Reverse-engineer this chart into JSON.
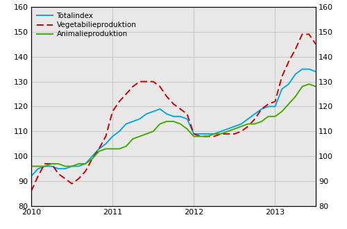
{
  "ylim": [
    80,
    160
  ],
  "xlim_start": 0,
  "xlim_end": 42,
  "xtick_positions": [
    0,
    12,
    24,
    36
  ],
  "xtick_labels": [
    "2010",
    "2011",
    "2012",
    "2013"
  ],
  "ytick_values": [
    80,
    90,
    100,
    110,
    120,
    130,
    140,
    150,
    160
  ],
  "grid_color": "#c8c8c8",
  "bg_color": "#e8e8e8",
  "fig_bg_color": "#ffffff",
  "totalindex_color": "#00aadd",
  "vegetabilieproduktion_color": "#cc0000",
  "animalieproduktion_color": "#44aa00",
  "legend_labels": [
    "Totalindex",
    "Vegetabilieproduktion",
    "Animalieproduktion"
  ],
  "totalindex": [
    92,
    95,
    96,
    96,
    95,
    95,
    96,
    96,
    97,
    100,
    103,
    105,
    108,
    110,
    113,
    114,
    115,
    117,
    118,
    119,
    117,
    116,
    116,
    115,
    109,
    109,
    109,
    109,
    110,
    111,
    112,
    113,
    115,
    117,
    119,
    120,
    120,
    127,
    129,
    133,
    135,
    135,
    134
  ],
  "vegetabilieproduktion": [
    86,
    92,
    97,
    97,
    93,
    91,
    89,
    91,
    94,
    99,
    103,
    108,
    118,
    122,
    125,
    128,
    130,
    130,
    130,
    128,
    124,
    121,
    119,
    117,
    109,
    108,
    108,
    108,
    109,
    109,
    109,
    110,
    112,
    115,
    119,
    121,
    122,
    132,
    138,
    143,
    149,
    149,
    145
  ],
  "animalieproduktion": [
    96,
    96,
    96,
    97,
    97,
    96,
    96,
    97,
    97,
    99,
    102,
    103,
    103,
    103,
    104,
    107,
    108,
    109,
    110,
    113,
    114,
    114,
    113,
    111,
    108,
    108,
    108,
    109,
    109,
    110,
    111,
    112,
    113,
    113,
    114,
    116,
    116,
    118,
    121,
    124,
    128,
    129,
    128
  ],
  "line_width": 1.4,
  "dash_pattern": [
    5,
    2.5
  ]
}
